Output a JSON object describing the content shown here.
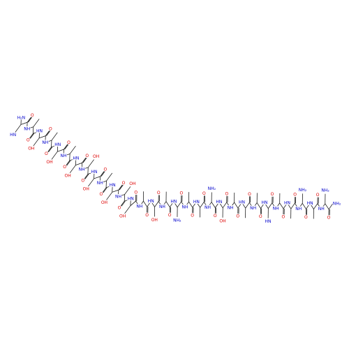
{
  "molecule": {
    "residues": [
      {
        "n": "H₂N",
        "o": "O",
        "side": "HN"
      },
      {
        "n": "NH",
        "o": "O"
      },
      {
        "n": "HN",
        "o": "O",
        "side": "OH"
      },
      {
        "n": "NH",
        "o": "O"
      },
      {
        "n": "HN",
        "o": "O",
        "side": "OH"
      },
      {
        "n": "NH",
        "o": "O"
      },
      {
        "n": "HN",
        "o": "O",
        "side": "OH"
      },
      {
        "n": "NH",
        "o": "O",
        "side": "OH"
      },
      {
        "n": "HN",
        "o": "O",
        "side": "OH"
      },
      {
        "n": "NH",
        "o": "O"
      },
      {
        "n": "HN",
        "o": "O",
        "side": "OH"
      },
      {
        "n": "NH",
        "o": "O",
        "side": "OH"
      },
      {
        "n": "HN",
        "o": "O",
        "side": "OH"
      },
      {
        "n": "NH",
        "o": "O"
      },
      {
        "n": "HN",
        "o": "O",
        "side": "OH"
      },
      {
        "n": "NH",
        "o": "O"
      },
      {
        "n": "HN",
        "o": "O",
        "side": "NH₂"
      },
      {
        "n": "NH",
        "o": "O"
      },
      {
        "n": "HN",
        "o": "O"
      },
      {
        "n": "NH",
        "o": "O",
        "side": "NH₂"
      },
      {
        "n": "HN",
        "o": "O",
        "side": "OH"
      },
      {
        "n": "NH",
        "o": "O"
      },
      {
        "n": "HN",
        "o": "O"
      },
      {
        "n": "NH",
        "o": "O"
      },
      {
        "n": "HN",
        "o": "O",
        "side": "HN"
      },
      {
        "n": "NH",
        "o": "O"
      },
      {
        "n": "HN",
        "o": "O"
      },
      {
        "n": "NH",
        "o": "O",
        "side": "NH₂"
      },
      {
        "n": "HN",
        "o": "O"
      },
      {
        "n": "NH",
        "o": "O",
        "side": "NH₂"
      }
    ],
    "c_term": "NH₂"
  }
}
